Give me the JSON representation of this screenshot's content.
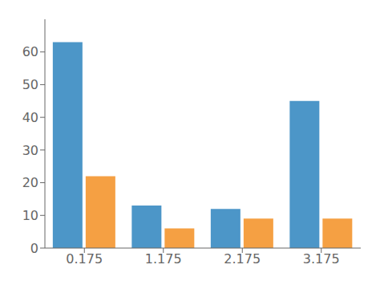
{
  "chart_data": {
    "type": "bar",
    "categories": [
      "0.175",
      "1.175",
      "2.175",
      "3.175"
    ],
    "series": [
      {
        "color": "#4C96C8",
        "values": [
          63,
          13,
          12,
          45
        ]
      },
      {
        "color": "#F5A043",
        "values": [
          22,
          6,
          9,
          9
        ]
      }
    ],
    "ylim": [
      0,
      70
    ],
    "yticks": [
      0,
      10,
      20,
      30,
      40,
      50,
      60
    ],
    "grid": false
  }
}
